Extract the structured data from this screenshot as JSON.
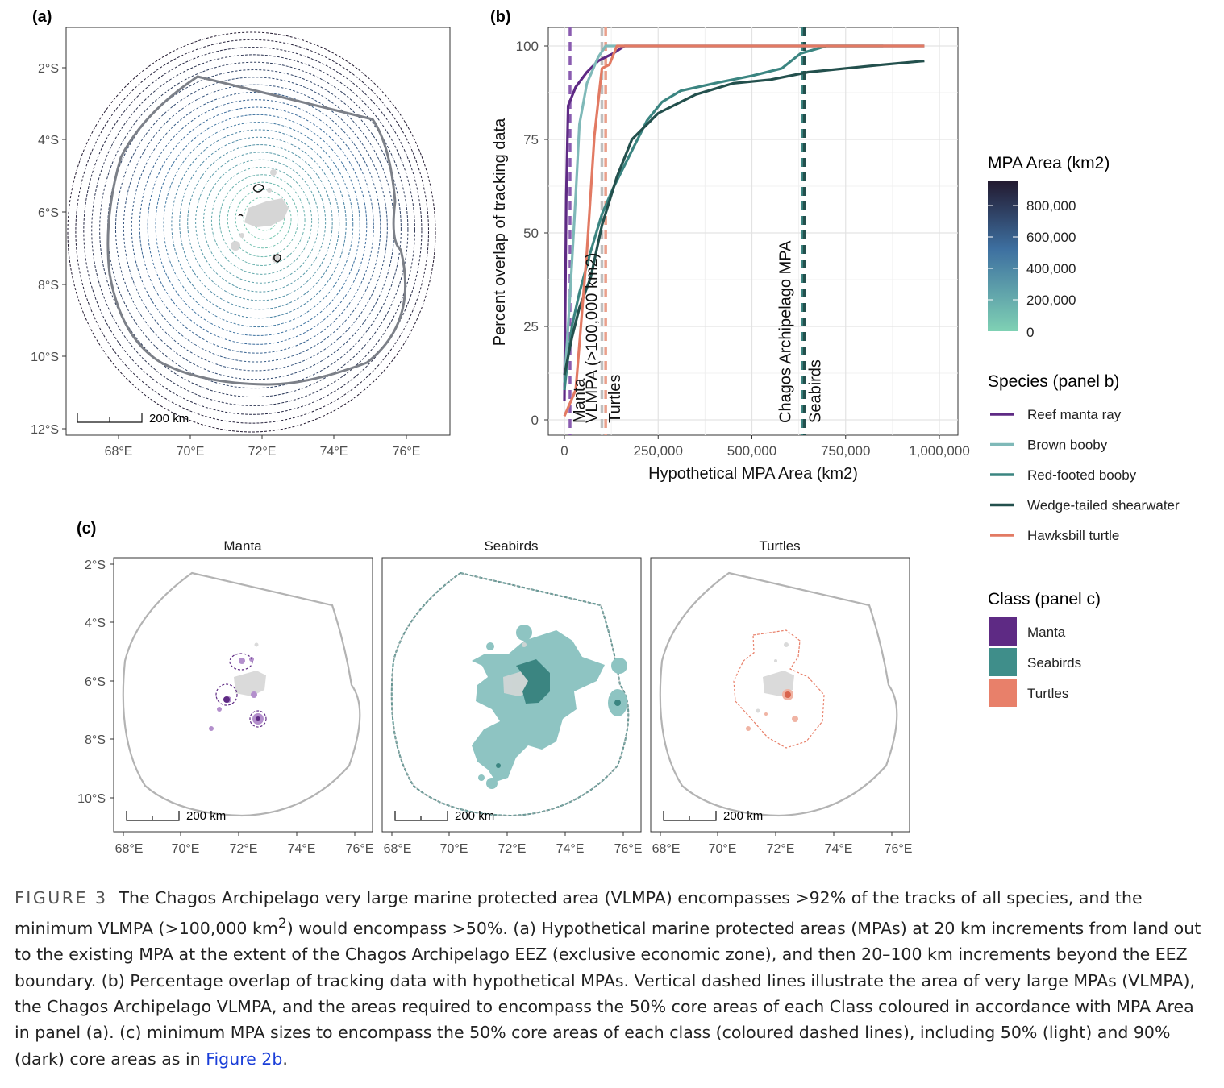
{
  "panel_labels": {
    "a": "(a)",
    "b": "(b)",
    "c": "(c)"
  },
  "scalebar_label": "200 km",
  "panel_a": {
    "lat_ticks": [
      "2°S",
      "4°S",
      "6°S",
      "8°S",
      "10°S",
      "12°S"
    ],
    "lon_ticks": [
      "68°E",
      "70°E",
      "72°E",
      "74°E",
      "76°E"
    ]
  },
  "chart_data": [
    {
      "type": "line",
      "panel": "b",
      "xlabel": "Hypothetical MPA Area (km2)",
      "ylabel": "Percent overlap of tracking data",
      "xlim": [
        0,
        1000000
      ],
      "ylim": [
        0,
        100
      ],
      "x_ticks": [
        0,
        250000,
        500000,
        750000,
        1000000
      ],
      "x_tick_labels": [
        "0",
        "250,000",
        "500,000",
        "750,000",
        "1,000,000"
      ],
      "y_ticks": [
        0,
        25,
        50,
        75,
        100
      ],
      "y_tick_labels": [
        "0",
        "25",
        "50",
        "75",
        "100"
      ],
      "series": [
        {
          "name": "Reef manta ray",
          "color": "#5e2a84",
          "points": [
            [
              0,
              5
            ],
            [
              5000,
              60
            ],
            [
              10000,
              84
            ],
            [
              30000,
              89
            ],
            [
              60000,
              93
            ],
            [
              90000,
              96
            ],
            [
              110000,
              97
            ],
            [
              130000,
              98
            ],
            [
              160000,
              100
            ],
            [
              960000,
              100
            ]
          ]
        },
        {
          "name": "Brown booby",
          "color": "#7fb9b8",
          "points": [
            [
              0,
              10
            ],
            [
              10000,
              25
            ],
            [
              20000,
              42
            ],
            [
              30000,
              60
            ],
            [
              40000,
              79
            ],
            [
              60000,
              90
            ],
            [
              90000,
              97
            ],
            [
              110000,
              100
            ],
            [
              960000,
              100
            ]
          ]
        },
        {
          "name": "Red-footed booby",
          "color": "#3b8581",
          "points": [
            [
              0,
              8
            ],
            [
              10000,
              17
            ],
            [
              20000,
              25
            ],
            [
              40000,
              34
            ],
            [
              70000,
              45
            ],
            [
              100000,
              55
            ],
            [
              130000,
              62
            ],
            [
              180000,
              72
            ],
            [
              220000,
              80
            ],
            [
              260000,
              85
            ],
            [
              310000,
              88
            ],
            [
              400000,
              90
            ],
            [
              500000,
              92
            ],
            [
              580000,
              94
            ],
            [
              630000,
              98
            ],
            [
              700000,
              100
            ],
            [
              850000,
              100
            ]
          ]
        },
        {
          "name": "Wedge-tailed shearwater",
          "color": "#23504d",
          "points": [
            [
              0,
              12
            ],
            [
              20000,
              22
            ],
            [
              40000,
              30
            ],
            [
              70000,
              38
            ],
            [
              100000,
              52
            ],
            [
              140000,
              65
            ],
            [
              180000,
              75
            ],
            [
              250000,
              82
            ],
            [
              350000,
              87
            ],
            [
              450000,
              90
            ],
            [
              550000,
              91
            ],
            [
              650000,
              93
            ],
            [
              750000,
              94
            ],
            [
              850000,
              95
            ],
            [
              960000,
              96
            ]
          ]
        },
        {
          "name": "Hawksbill turtle",
          "color": "#e27a63",
          "points": [
            [
              0,
              1
            ],
            [
              30000,
              8
            ],
            [
              60000,
              45
            ],
            [
              80000,
              76
            ],
            [
              100000,
              94
            ],
            [
              120000,
              95
            ],
            [
              140000,
              100
            ],
            [
              960000,
              100
            ]
          ]
        }
      ],
      "vertical_reference_lines": [
        {
          "label": "Manta",
          "x": 15000,
          "color": "#8a5cb0"
        },
        {
          "label": "VLMPA (>100,000 km2)",
          "x": 100000,
          "color": "#bfbfbf"
        },
        {
          "label": "Turtles",
          "x": 110000,
          "color": "#e9a08c"
        },
        {
          "label": "Chagos Archipelago MPA",
          "x": 635000,
          "color": "#3b8581"
        },
        {
          "label": "Seabirds",
          "x": 640000,
          "color": "#23504d"
        }
      ]
    }
  ],
  "panel_c": {
    "facets": [
      "Manta",
      "Seabirds",
      "Turtles"
    ],
    "lat_ticks": [
      "2°S",
      "4°S",
      "6°S",
      "8°S",
      "10°S"
    ],
    "lon_ticks": [
      "68°E",
      "70°E",
      "72°E",
      "74°E",
      "76°E"
    ]
  },
  "legend": {
    "area": {
      "title": "MPA Area (km2)",
      "labels": [
        "800,000",
        "600,000",
        "400,000",
        "200,000",
        "0"
      ],
      "colors": {
        "low": "#7fd1b4",
        "mid": "#3d6fa0",
        "high": "#231a30"
      }
    },
    "species": {
      "title": "Species (panel b)",
      "items": [
        {
          "label": "Reef manta ray",
          "color": "#5e2a84"
        },
        {
          "label": "Brown booby",
          "color": "#7fb9b8"
        },
        {
          "label": "Red-footed booby",
          "color": "#3b8581"
        },
        {
          "label": "Wedge-tailed shearwater",
          "color": "#23504d"
        },
        {
          "label": "Hawksbill turtle",
          "color": "#e27a63"
        }
      ]
    },
    "class": {
      "title": "Class (panel c)",
      "items": [
        {
          "label": "Manta",
          "color": "#5e2a84"
        },
        {
          "label": "Seabirds",
          "color": "#3f8e8a"
        },
        {
          "label": "Turtles",
          "color": "#e8806a"
        }
      ]
    }
  },
  "caption": {
    "figure_label": "FIGURE 3",
    "text_1": "The Chagos Archipelago very large marine protected area (VLMPA) encompasses >92% of the tracks of all species, and the minimum VLMPA (>100,000 km",
    "superscript": "2",
    "text_2": ") would encompass >50%. (a) Hypothetical marine protected areas (MPAs) at 20 km increments from land out to the existing MPA at the extent of the Chagos Archipelago EEZ (exclusive economic zone), and then 20–100 km increments beyond the EEZ boundary. (b) Percentage overlap of tracking data with hypothetical MPAs. Vertical dashed lines illustrate the area of very large MPAs (VLMPA), the Chagos Archipelago VLMPA, and the areas required to encompass the 50% core areas of each Class coloured in accordance with MPA Area in panel (a). (c) minimum MPA sizes to encompass the 50% core areas of each class (coloured dashed lines), including 50% (light) and 90% (dark) core areas as in ",
    "link_text": "Figure 2b",
    "end": "."
  }
}
